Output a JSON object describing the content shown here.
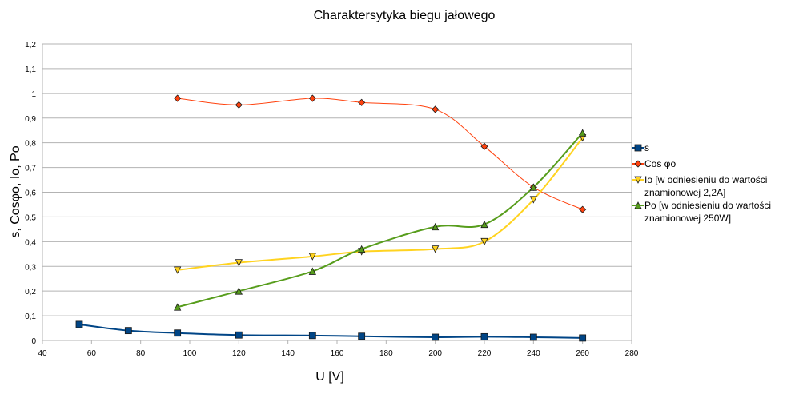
{
  "chart_data": {
    "type": "scatter",
    "title": "Charaktersytyka biegu jałowego",
    "xlabel": "U [V]",
    "ylabel": "s, Cosφo, Io, Po",
    "xlim": [
      40,
      280
    ],
    "ylim": [
      0,
      1.2
    ],
    "x_ticks": [
      "40",
      "60",
      "80",
      "100",
      "120",
      "140",
      "160",
      "180",
      "200",
      "220",
      "240",
      "260",
      "280"
    ],
    "y_ticks": [
      "0",
      "0,1",
      "0,2",
      "0,3",
      "0,4",
      "0,5",
      "0,6",
      "0,7",
      "0,8",
      "0,9",
      "1",
      "1,1",
      "1,2"
    ],
    "grid": "horizontal",
    "legend_position": "right",
    "series": [
      {
        "name": "s",
        "color": "#004586",
        "marker": "square",
        "x": [
          55,
          75,
          95,
          120,
          150,
          170,
          200,
          220,
          240,
          260
        ],
        "y": [
          0.065,
          0.04,
          0.03,
          0.022,
          0.02,
          0.017,
          0.013,
          0.015,
          0.013,
          0.01
        ]
      },
      {
        "name": "Cos φo",
        "color": "#FF420E",
        "marker": "diamond",
        "x": [
          95,
          120,
          150,
          170,
          200,
          220,
          240,
          260
        ],
        "y": [
          0.98,
          0.953,
          0.98,
          0.963,
          0.935,
          0.785,
          0.62,
          0.53
        ]
      },
      {
        "name": "Io [w odniesieniu do wartości znamionowej 2,2A]",
        "legend_lines": [
          "Io [w odniesieniu do wartości",
          "znamionowej 2,2A]"
        ],
        "color": "#FFD320",
        "marker": "triangle-down",
        "x": [
          95,
          120,
          150,
          170,
          200,
          220,
          240,
          260
        ],
        "y": [
          0.285,
          0.315,
          0.34,
          0.36,
          0.37,
          0.4,
          0.57,
          0.82
        ]
      },
      {
        "name": "Po [w odniesieniu do wartości znamionowej 250W]",
        "legend_lines": [
          "Po  [w odniesieniu do wartości",
          "znamionowej 250W]"
        ],
        "color": "#579D1C",
        "marker": "triangle-up",
        "x": [
          95,
          120,
          150,
          170,
          200,
          220,
          240,
          260
        ],
        "y": [
          0.135,
          0.2,
          0.28,
          0.37,
          0.46,
          0.47,
          0.62,
          0.84
        ]
      }
    ]
  }
}
